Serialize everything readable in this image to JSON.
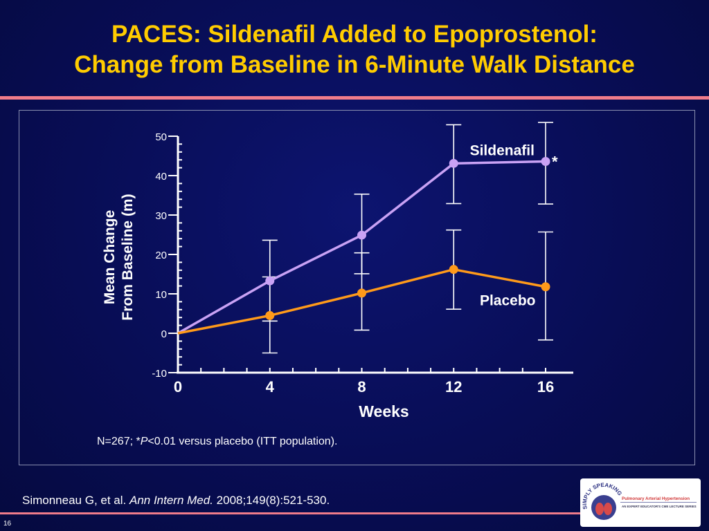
{
  "title_line1": "PACES: Sildenafil Added to Epoprostenol:",
  "title_line2": "Change from Baseline in 6-Minute Walk Distance",
  "footnote_pre": "N=267; *",
  "footnote_italic": "P",
  "footnote_post": "<0.01 versus placebo (ITT population).",
  "citation_pre": "Simonneau G, et al. ",
  "citation_journal": "Ann Intern Med.",
  "citation_post": " 2008;149(8):521-530.",
  "page_number": "16",
  "logo": {
    "arc_text": "SIMPLY SPEAKING",
    "main_text": "Pulmonary Arterial Hypertension",
    "sub_text": "AN EXPERT EDUCATOR'S CME LECTURE SERIES"
  },
  "colors": {
    "title": "#ffcc00",
    "sildenafil": "#c9a2f5",
    "placebo": "#ff9a1a",
    "rule": "#f07c8a",
    "axis": "#ffffff"
  },
  "chart_data": {
    "type": "line",
    "x": [
      0,
      4,
      8,
      12,
      16
    ],
    "xlabel": "Weeks",
    "ylabel": [
      "Mean Change",
      "From Baseline (m)"
    ],
    "ylim": [
      -10,
      50
    ],
    "y_ticks": [
      -10,
      0,
      10,
      20,
      30,
      40,
      50
    ],
    "x_ticks": [
      0,
      4,
      8,
      12,
      16
    ],
    "series": [
      {
        "name": "Sildenafil",
        "color": "#c9a2f5",
        "values": [
          0,
          13.3,
          24.9,
          43.1,
          43.6
        ],
        "error_low": [
          null,
          3.1,
          15.1,
          32.9,
          32.8
        ],
        "error_high": [
          null,
          23.6,
          35.3,
          52.9,
          53.5
        ],
        "annotation": "*"
      },
      {
        "name": "Placebo",
        "color": "#ff9a1a",
        "values": [
          0,
          4.5,
          10.2,
          16.2,
          11.8
        ],
        "error_low": [
          null,
          -5.0,
          0.8,
          6.1,
          -1.7
        ],
        "error_high": [
          null,
          14.3,
          20.4,
          26.2,
          25.7
        ]
      }
    ]
  }
}
